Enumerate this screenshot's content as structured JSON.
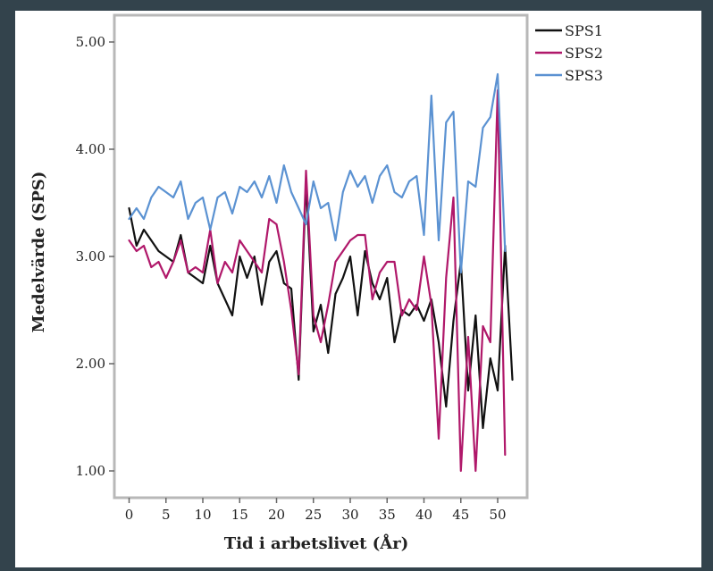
{
  "chart_data": {
    "type": "line",
    "xlabel": "Tid i arbetslivet (År)",
    "ylabel": "Medelvärde (SPS)",
    "xlim": [
      -2,
      54
    ],
    "ylim": [
      0.75,
      5.25
    ],
    "xticks": [
      0,
      5,
      10,
      15,
      20,
      25,
      30,
      35,
      40,
      45,
      50
    ],
    "xtick_labels": [
      "0",
      "5",
      "10",
      "15",
      "20",
      "25",
      "30",
      "35",
      "40",
      "45",
      "50"
    ],
    "yticks": [
      1,
      2,
      3,
      4,
      5
    ],
    "ytick_labels": [
      "1.00",
      "2.00",
      "3.00",
      "4.00",
      "5.00"
    ],
    "legend_position": "top-right-outside",
    "grid": false,
    "x": [
      0,
      1,
      2,
      3,
      4,
      5,
      6,
      7,
      8,
      9,
      10,
      11,
      12,
      13,
      14,
      15,
      16,
      17,
      18,
      19,
      20,
      21,
      22,
      23,
      24,
      25,
      26,
      27,
      28,
      29,
      30,
      31,
      32,
      33,
      34,
      35,
      36,
      37,
      38,
      39,
      40,
      41,
      42,
      43,
      44,
      45,
      46,
      47,
      48,
      49,
      50,
      51,
      52,
      53
    ],
    "series": [
      {
        "name": "SPS1",
        "color": "#111111",
        "values": [
          3.45,
          3.1,
          3.25,
          3.15,
          3.05,
          3.0,
          2.95,
          3.2,
          2.85,
          2.8,
          2.75,
          3.1,
          2.75,
          2.6,
          2.45,
          3.0,
          2.8,
          3.0,
          2.55,
          2.95,
          3.05,
          2.75,
          2.7,
          1.85,
          3.7,
          2.3,
          2.55,
          2.1,
          2.65,
          2.8,
          3.0,
          2.45,
          3.05,
          2.75,
          2.6,
          2.8,
          2.2,
          2.5,
          2.45,
          2.55,
          2.4,
          2.6,
          2.2,
          1.6,
          2.4,
          2.95,
          1.75,
          2.45,
          1.4,
          2.05,
          1.75,
          3.1,
          1.85,
          null
        ]
      },
      {
        "name": "SPS2",
        "color": "#b0186a",
        "values": [
          3.15,
          3.05,
          3.1,
          2.9,
          2.95,
          2.8,
          2.95,
          3.15,
          2.85,
          2.9,
          2.85,
          3.25,
          2.75,
          2.95,
          2.85,
          3.15,
          3.05,
          2.95,
          2.85,
          3.35,
          3.3,
          2.95,
          2.5,
          1.9,
          3.8,
          2.45,
          2.2,
          2.55,
          2.95,
          3.05,
          3.15,
          3.2,
          3.2,
          2.6,
          2.85,
          2.95,
          2.95,
          2.45,
          2.6,
          2.5,
          3.0,
          2.55,
          1.3,
          2.8,
          3.55,
          1.0,
          2.25,
          1.0,
          2.35,
          2.2,
          4.55,
          1.15,
          null,
          null
        ]
      },
      {
        "name": "SPS3",
        "color": "#5b92d2",
        "values": [
          3.35,
          3.45,
          3.35,
          3.55,
          3.65,
          3.6,
          3.55,
          3.7,
          3.35,
          3.5,
          3.55,
          3.25,
          3.55,
          3.6,
          3.4,
          3.65,
          3.6,
          3.7,
          3.55,
          3.75,
          3.5,
          3.85,
          3.6,
          3.45,
          3.3,
          3.7,
          3.45,
          3.5,
          3.15,
          3.6,
          3.8,
          3.65,
          3.75,
          3.5,
          3.75,
          3.85,
          3.6,
          3.55,
          3.7,
          3.75,
          3.2,
          4.5,
          3.15,
          4.25,
          4.35,
          2.85,
          3.7,
          3.65,
          4.2,
          4.3,
          4.7,
          3.05,
          null,
          null
        ]
      }
    ]
  }
}
